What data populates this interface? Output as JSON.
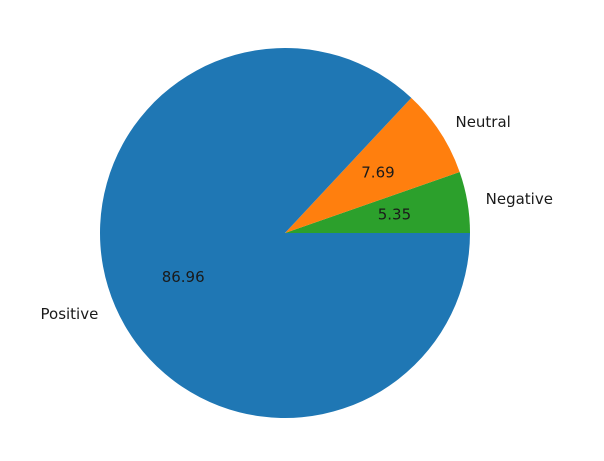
{
  "chart_data": {
    "type": "pie",
    "labels": [
      "Negative",
      "Neutral",
      "Positive"
    ],
    "values": [
      5.35,
      7.69,
      86.96
    ],
    "value_labels": [
      "5.35",
      "7.69",
      "86.96"
    ],
    "colors": [
      "#2ca02c",
      "#ff7f0e",
      "#1f77b4"
    ],
    "start_angle_deg": 0,
    "direction": "counterclockwise"
  }
}
